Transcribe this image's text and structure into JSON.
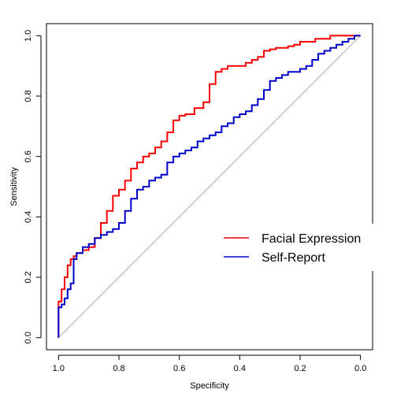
{
  "chart_data": {
    "type": "line",
    "title": "",
    "xlabel": "Specificity",
    "ylabel": "Sensitivity",
    "xlim": [
      1.04,
      -0.04
    ],
    "ylim": [
      -0.04,
      1.04
    ],
    "x_reversed": true,
    "x_ticks": [
      1.0,
      0.8,
      0.6,
      0.4,
      0.2,
      0.0
    ],
    "x_tick_labels": [
      "1.0",
      "0.8",
      "0.6",
      "0.4",
      "0.2",
      "0.0"
    ],
    "y_ticks": [
      0.0,
      0.2,
      0.4,
      0.6,
      0.8,
      1.0
    ],
    "y_tick_labels": [
      "0.0",
      "0.2",
      "0.4",
      "0.6",
      "0.8",
      "1.0"
    ],
    "reference_line": {
      "x": [
        1.0,
        0.0
      ],
      "y": [
        0.0,
        1.0
      ],
      "color": "#aaaaaa"
    },
    "legend_position": "right",
    "series": [
      {
        "name": "Facial Expression",
        "color": "#ff0000",
        "x": [
          1.0,
          1.0,
          0.99,
          0.98,
          0.97,
          0.96,
          0.95,
          0.94,
          0.92,
          0.9,
          0.88,
          0.86,
          0.84,
          0.82,
          0.8,
          0.78,
          0.76,
          0.74,
          0.72,
          0.7,
          0.68,
          0.66,
          0.64,
          0.62,
          0.6,
          0.58,
          0.55,
          0.52,
          0.5,
          0.48,
          0.46,
          0.44,
          0.42,
          0.4,
          0.38,
          0.36,
          0.34,
          0.32,
          0.3,
          0.28,
          0.26,
          0.24,
          0.22,
          0.2,
          0.15,
          0.1,
          0.05,
          0.02,
          0.0
        ],
        "y": [
          0.0,
          0.08,
          0.12,
          0.16,
          0.2,
          0.24,
          0.26,
          0.27,
          0.28,
          0.29,
          0.3,
          0.33,
          0.38,
          0.42,
          0.47,
          0.49,
          0.52,
          0.56,
          0.58,
          0.6,
          0.61,
          0.63,
          0.65,
          0.68,
          0.72,
          0.735,
          0.74,
          0.76,
          0.78,
          0.84,
          0.88,
          0.89,
          0.9,
          0.9,
          0.9,
          0.91,
          0.92,
          0.93,
          0.95,
          0.955,
          0.96,
          0.96,
          0.965,
          0.97,
          0.98,
          0.99,
          1.0,
          1.0,
          1.0
        ]
      },
      {
        "name": "Self-Report",
        "color": "#0000cc",
        "x": [
          1.0,
          1.0,
          0.99,
          0.98,
          0.97,
          0.96,
          0.95,
          0.94,
          0.92,
          0.9,
          0.88,
          0.86,
          0.84,
          0.82,
          0.8,
          0.78,
          0.76,
          0.74,
          0.72,
          0.7,
          0.68,
          0.66,
          0.64,
          0.62,
          0.6,
          0.58,
          0.56,
          0.54,
          0.52,
          0.5,
          0.48,
          0.46,
          0.44,
          0.42,
          0.4,
          0.38,
          0.36,
          0.34,
          0.32,
          0.3,
          0.28,
          0.26,
          0.24,
          0.22,
          0.2,
          0.18,
          0.16,
          0.14,
          0.12,
          0.1,
          0.08,
          0.06,
          0.04,
          0.02,
          0.0
        ],
        "y": [
          0.0,
          0.08,
          0.1,
          0.11,
          0.13,
          0.16,
          0.18,
          0.26,
          0.28,
          0.3,
          0.31,
          0.33,
          0.34,
          0.35,
          0.36,
          0.38,
          0.42,
          0.46,
          0.49,
          0.5,
          0.52,
          0.53,
          0.54,
          0.58,
          0.6,
          0.61,
          0.62,
          0.63,
          0.65,
          0.66,
          0.67,
          0.68,
          0.7,
          0.71,
          0.73,
          0.74,
          0.75,
          0.77,
          0.79,
          0.82,
          0.85,
          0.86,
          0.87,
          0.88,
          0.88,
          0.89,
          0.9,
          0.92,
          0.94,
          0.95,
          0.96,
          0.97,
          0.98,
          0.99,
          1.0
        ]
      }
    ]
  }
}
